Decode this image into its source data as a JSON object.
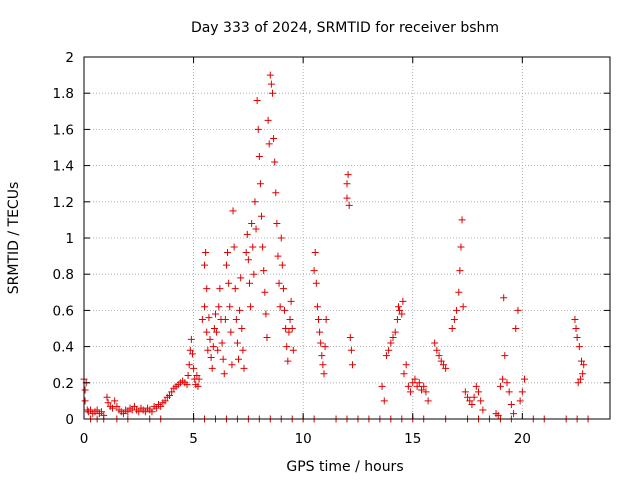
{
  "chart_data": {
    "type": "scatter",
    "title": "Day 333 of 2024, SRMTID for receiver bshm",
    "xlabel": "GPS time / hours",
    "ylabel": "SRMTID / TECUs",
    "xlim": [
      0,
      24
    ],
    "ylim": [
      0,
      2
    ],
    "xticks": [
      "0",
      "5",
      "10",
      "15",
      "20"
    ],
    "yticks": [
      "0",
      "0.2",
      "0.4",
      "0.6",
      "0.8",
      "1",
      "1.2",
      "1.4",
      "1.6",
      "1.8",
      "2"
    ],
    "grid": true,
    "marker": "+",
    "color": "#e00000",
    "series": [
      {
        "points": [
          [
            0.0,
            0.22
          ],
          [
            0.05,
            0.16
          ],
          [
            0.1,
            0.2
          ],
          [
            0.05,
            0.1
          ],
          [
            0.15,
            0.05
          ],
          [
            0.2,
            0.04
          ],
          [
            0.3,
            0.05
          ],
          [
            0.4,
            0.03
          ],
          [
            0.5,
            0.04
          ],
          [
            0.6,
            0.05
          ],
          [
            0.7,
            0.03
          ],
          [
            0.8,
            0.04
          ],
          [
            0.9,
            0.02
          ],
          [
            0.3,
            0.0
          ],
          [
            0.6,
            0.0
          ],
          [
            0.9,
            0.0
          ],
          [
            1.05,
            0.12
          ],
          [
            1.1,
            0.09
          ],
          [
            1.2,
            0.07
          ],
          [
            1.3,
            0.06
          ],
          [
            1.4,
            0.1
          ],
          [
            1.5,
            0.07
          ],
          [
            1.6,
            0.05
          ],
          [
            1.7,
            0.04
          ],
          [
            1.8,
            0.03
          ],
          [
            1.9,
            0.05
          ],
          [
            2.0,
            0.04
          ],
          [
            2.1,
            0.06
          ],
          [
            2.2,
            0.05
          ],
          [
            2.3,
            0.07
          ],
          [
            2.4,
            0.05
          ],
          [
            2.5,
            0.04
          ],
          [
            2.6,
            0.06
          ],
          [
            2.7,
            0.05
          ],
          [
            2.8,
            0.04
          ],
          [
            2.9,
            0.06
          ],
          [
            3.0,
            0.05
          ],
          [
            3.1,
            0.04
          ],
          [
            3.2,
            0.07
          ],
          [
            3.3,
            0.06
          ],
          [
            3.4,
            0.08
          ],
          [
            3.5,
            0.07
          ],
          [
            3.6,
            0.09
          ],
          [
            3.7,
            0.1
          ],
          [
            3.8,
            0.12
          ],
          [
            3.9,
            0.13
          ],
          [
            4.0,
            0.15
          ],
          [
            4.1,
            0.17
          ],
          [
            4.2,
            0.18
          ],
          [
            4.3,
            0.19
          ],
          [
            4.4,
            0.2
          ],
          [
            4.5,
            0.21
          ],
          [
            4.6,
            0.2
          ],
          [
            4.7,
            0.19
          ],
          [
            4.75,
            0.24
          ],
          [
            4.8,
            0.3
          ],
          [
            4.85,
            0.38
          ],
          [
            4.9,
            0.44
          ],
          [
            4.95,
            0.36
          ],
          [
            5.0,
            0.28
          ],
          [
            5.05,
            0.22
          ],
          [
            5.1,
            0.19
          ],
          [
            5.15,
            0.24
          ],
          [
            5.2,
            0.18
          ],
          [
            5.25,
            0.22
          ],
          [
            5.4,
            0.55
          ],
          [
            5.5,
            0.62
          ],
          [
            5.5,
            0.85
          ],
          [
            5.55,
            0.92
          ],
          [
            5.6,
            0.48
          ],
          [
            5.6,
            0.72
          ],
          [
            5.65,
            0.38
          ],
          [
            5.7,
            0.56
          ],
          [
            5.75,
            0.44
          ],
          [
            5.8,
            0.34
          ],
          [
            5.85,
            0.28
          ],
          [
            5.9,
            0.4
          ],
          [
            5.95,
            0.5
          ],
          [
            6.0,
            0.58
          ],
          [
            6.05,
            0.48
          ],
          [
            6.1,
            0.38
          ],
          [
            6.15,
            0.62
          ],
          [
            6.2,
            0.72
          ],
          [
            6.25,
            0.55
          ],
          [
            6.3,
            0.42
          ],
          [
            6.35,
            0.33
          ],
          [
            6.4,
            0.25
          ],
          [
            6.45,
            0.55
          ],
          [
            6.5,
            0.85
          ],
          [
            6.55,
            0.92
          ],
          [
            6.6,
            0.75
          ],
          [
            6.65,
            0.62
          ],
          [
            6.7,
            0.48
          ],
          [
            6.75,
            0.3
          ],
          [
            6.8,
            1.15
          ],
          [
            6.85,
            0.95
          ],
          [
            6.9,
            0.72
          ],
          [
            6.95,
            0.55
          ],
          [
            7.0,
            0.42
          ],
          [
            7.05,
            0.33
          ],
          [
            7.1,
            0.6
          ],
          [
            7.15,
            0.78
          ],
          [
            7.2,
            0.5
          ],
          [
            7.25,
            0.38
          ],
          [
            7.3,
            0.28
          ],
          [
            7.4,
            0.92
          ],
          [
            7.45,
            1.02
          ],
          [
            7.5,
            0.88
          ],
          [
            7.55,
            0.75
          ],
          [
            7.6,
            0.62
          ],
          [
            7.65,
            1.08
          ],
          [
            7.7,
            0.95
          ],
          [
            7.75,
            0.8
          ],
          [
            7.8,
            1.2
          ],
          [
            7.85,
            1.05
          ],
          [
            7.9,
            1.76
          ],
          [
            7.95,
            1.6
          ],
          [
            8.0,
            1.45
          ],
          [
            8.05,
            1.3
          ],
          [
            8.1,
            1.12
          ],
          [
            8.15,
            0.95
          ],
          [
            8.2,
            0.82
          ],
          [
            8.25,
            0.7
          ],
          [
            8.3,
            0.58
          ],
          [
            8.35,
            0.45
          ],
          [
            8.4,
            1.65
          ],
          [
            8.45,
            1.52
          ],
          [
            8.5,
            1.9
          ],
          [
            8.55,
            1.85
          ],
          [
            8.6,
            1.8
          ],
          [
            8.65,
            1.55
          ],
          [
            8.7,
            1.42
          ],
          [
            8.75,
            1.25
          ],
          [
            8.8,
            1.08
          ],
          [
            8.85,
            0.9
          ],
          [
            8.9,
            0.75
          ],
          [
            8.95,
            0.62
          ],
          [
            9.0,
            1.0
          ],
          [
            9.05,
            0.85
          ],
          [
            9.1,
            0.72
          ],
          [
            9.15,
            0.6
          ],
          [
            9.2,
            0.5
          ],
          [
            9.25,
            0.4
          ],
          [
            9.3,
            0.32
          ],
          [
            9.35,
            0.48
          ],
          [
            9.4,
            0.55
          ],
          [
            9.45,
            0.65
          ],
          [
            9.5,
            0.5
          ],
          [
            9.55,
            0.38
          ],
          [
            10.5,
            0.82
          ],
          [
            10.55,
            0.92
          ],
          [
            10.6,
            0.75
          ],
          [
            10.65,
            0.62
          ],
          [
            10.7,
            0.55
          ],
          [
            10.75,
            0.48
          ],
          [
            10.8,
            0.42
          ],
          [
            10.85,
            0.35
          ],
          [
            10.9,
            0.3
          ],
          [
            10.95,
            0.25
          ],
          [
            11.0,
            0.4
          ],
          [
            11.05,
            0.55
          ],
          [
            12.0,
            1.3
          ],
          [
            12.0,
            1.22
          ],
          [
            12.05,
            1.35
          ],
          [
            12.1,
            1.18
          ],
          [
            12.15,
            0.45
          ],
          [
            12.2,
            0.38
          ],
          [
            12.25,
            0.3
          ],
          [
            13.6,
            0.18
          ],
          [
            13.7,
            0.1
          ],
          [
            13.8,
            0.35
          ],
          [
            13.9,
            0.38
          ],
          [
            14.0,
            0.42
          ],
          [
            14.1,
            0.45
          ],
          [
            14.2,
            0.48
          ],
          [
            14.3,
            0.55
          ],
          [
            14.35,
            0.62
          ],
          [
            14.4,
            0.6
          ],
          [
            14.5,
            0.58
          ],
          [
            14.55,
            0.65
          ],
          [
            14.6,
            0.25
          ],
          [
            14.7,
            0.3
          ],
          [
            14.8,
            0.18
          ],
          [
            14.9,
            0.15
          ],
          [
            15.0,
            0.2
          ],
          [
            15.1,
            0.22
          ],
          [
            15.2,
            0.18
          ],
          [
            15.3,
            0.2
          ],
          [
            15.4,
            0.16
          ],
          [
            15.5,
            0.18
          ],
          [
            15.6,
            0.15
          ],
          [
            15.7,
            0.1
          ],
          [
            16.0,
            0.42
          ],
          [
            16.1,
            0.38
          ],
          [
            16.2,
            0.35
          ],
          [
            16.3,
            0.32
          ],
          [
            16.4,
            0.3
          ],
          [
            16.5,
            0.28
          ],
          [
            16.8,
            0.5
          ],
          [
            16.9,
            0.55
          ],
          [
            17.0,
            0.6
          ],
          [
            17.1,
            0.7
          ],
          [
            17.15,
            0.82
          ],
          [
            17.2,
            0.95
          ],
          [
            17.25,
            1.1
          ],
          [
            17.3,
            0.62
          ],
          [
            17.4,
            0.15
          ],
          [
            17.5,
            0.12
          ],
          [
            17.6,
            0.1
          ],
          [
            17.7,
            0.08
          ],
          [
            17.8,
            0.12
          ],
          [
            17.9,
            0.18
          ],
          [
            18.0,
            0.15
          ],
          [
            18.1,
            0.1
          ],
          [
            18.2,
            0.05
          ],
          [
            18.8,
            0.03
          ],
          [
            18.9,
            0.02
          ],
          [
            19.0,
            0.18
          ],
          [
            19.1,
            0.22
          ],
          [
            19.15,
            0.67
          ],
          [
            19.2,
            0.35
          ],
          [
            19.3,
            0.2
          ],
          [
            19.4,
            0.15
          ],
          [
            19.5,
            0.08
          ],
          [
            19.6,
            0.03
          ],
          [
            19.7,
            0.5
          ],
          [
            19.8,
            0.6
          ],
          [
            19.9,
            0.1
          ],
          [
            20.0,
            0.15
          ],
          [
            20.1,
            0.22
          ],
          [
            22.4,
            0.55
          ],
          [
            22.45,
            0.5
          ],
          [
            22.5,
            0.45
          ],
          [
            22.6,
            0.4
          ],
          [
            22.7,
            0.32
          ],
          [
            22.8,
            0.3
          ],
          [
            22.55,
            0.2
          ],
          [
            22.65,
            0.22
          ],
          [
            22.75,
            0.25
          ],
          [
            1.5,
            0.0
          ],
          [
            2.0,
            0.0
          ],
          [
            3.0,
            0.0
          ],
          [
            3.5,
            0.0
          ],
          [
            5.0,
            0.0
          ],
          [
            5.5,
            0.0
          ],
          [
            6.0,
            0.0
          ],
          [
            6.5,
            0.0
          ],
          [
            7.0,
            0.0
          ],
          [
            7.5,
            0.0
          ],
          [
            8.0,
            0.0
          ],
          [
            8.5,
            0.0
          ],
          [
            9.0,
            0.0
          ],
          [
            9.5,
            0.0
          ],
          [
            10.0,
            0.0
          ],
          [
            10.5,
            0.0
          ],
          [
            11.5,
            0.0
          ],
          [
            12.0,
            0.0
          ],
          [
            12.5,
            0.0
          ],
          [
            13.0,
            0.0
          ],
          [
            13.5,
            0.0
          ],
          [
            14.0,
            0.0
          ],
          [
            14.5,
            0.0
          ],
          [
            15.0,
            0.0
          ],
          [
            15.5,
            0.0
          ],
          [
            16.5,
            0.0
          ],
          [
            17.5,
            0.0
          ],
          [
            18.0,
            0.0
          ],
          [
            18.5,
            0.0
          ],
          [
            19.0,
            0.0
          ],
          [
            19.5,
            0.0
          ],
          [
            20.5,
            0.0
          ],
          [
            21.0,
            0.0
          ],
          [
            22.0,
            0.0
          ],
          [
            22.5,
            0.0
          ],
          [
            23.0,
            0.0
          ]
        ]
      }
    ]
  }
}
